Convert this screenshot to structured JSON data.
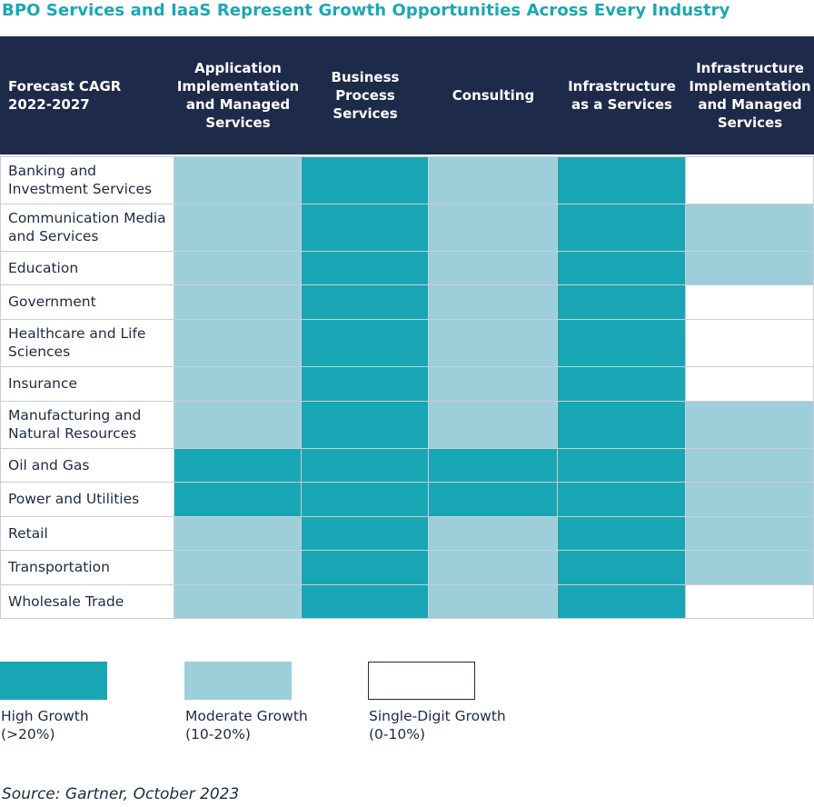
{
  "title": "BPO Services and IaaS Represent Growth Opportunities Across Every Industry",
  "source": "Source: Gartner, October 2023",
  "colors": {
    "high": "#18a6b4",
    "moderate": "#9ccfd9",
    "single": "#ffffff",
    "header_bg": "#1e2a4a",
    "title": "#1aa7b5"
  },
  "chart_data": {
    "type": "heatmap",
    "title": "BPO Services and IaaS Represent Growth Opportunities Across Every Industry",
    "corner_label": "Forecast CAGR\n2022-2027",
    "columns": [
      "Application\nImplementation\nand Managed\nServices",
      "Business Process\nServices",
      "Consulting",
      "Infrastructure\nas a Services",
      "Infrastructure\nImplementation\nand Managed\nServices"
    ],
    "rows": [
      "Banking and\nInvestment Services",
      "Communication Media\nand Services",
      "Education",
      "Government",
      "Healthcare and Life\nSciences",
      "Insurance",
      "Manufacturing and\nNatural Resources",
      "Oil and Gas",
      "Power and Utilities",
      "Retail",
      "Transportation",
      "Wholesale Trade"
    ],
    "values": [
      [
        "moderate",
        "high",
        "moderate",
        "high",
        "single"
      ],
      [
        "moderate",
        "high",
        "moderate",
        "high",
        "moderate"
      ],
      [
        "moderate",
        "high",
        "moderate",
        "high",
        "moderate"
      ],
      [
        "moderate",
        "high",
        "moderate",
        "high",
        "single"
      ],
      [
        "moderate",
        "high",
        "moderate",
        "high",
        "single"
      ],
      [
        "moderate",
        "high",
        "moderate",
        "high",
        "single"
      ],
      [
        "moderate",
        "high",
        "moderate",
        "high",
        "moderate"
      ],
      [
        "high",
        "high",
        "high",
        "high",
        "moderate"
      ],
      [
        "high",
        "high",
        "high",
        "high",
        "moderate"
      ],
      [
        "moderate",
        "high",
        "moderate",
        "high",
        "moderate"
      ],
      [
        "moderate",
        "high",
        "moderate",
        "high",
        "moderate"
      ],
      [
        "moderate",
        "high",
        "moderate",
        "high",
        "single"
      ]
    ],
    "legend": [
      {
        "key": "high",
        "label": "High Growth\n(>20%)"
      },
      {
        "key": "moderate",
        "label": "Moderate Growth\n(10-20%)"
      },
      {
        "key": "single",
        "label": "Single-Digit Growth\n(0-10%)"
      }
    ]
  }
}
